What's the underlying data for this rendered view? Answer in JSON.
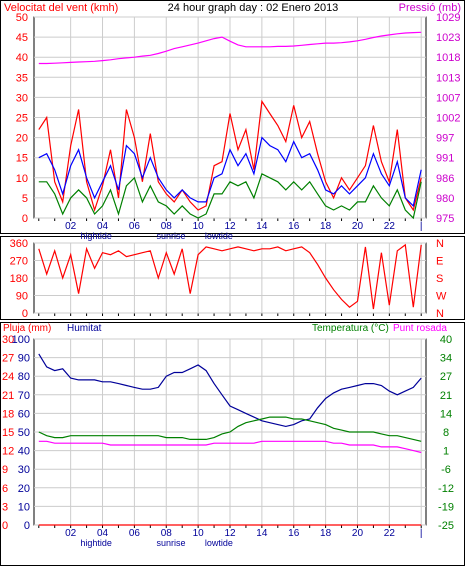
{
  "header": {
    "left_label": "Velocitat del vent (kmh)",
    "center_title": "24 hour graph day : 02 Enero 2013",
    "right_label": "Pressió (mb)"
  },
  "colors": {
    "wind": "#ff0000",
    "gust": "#ff0000",
    "avg_wind": "#0000ff",
    "min_wind": "#008000",
    "pressure": "#ff00ff",
    "direction": "#ff0000",
    "rain": "#ff0000",
    "humidity": "#000099",
    "temperature": "#008000",
    "dewpoint": "#ff00ff",
    "grid": "#cccccc",
    "axis_left": "#ff0000",
    "axis_right": "#cc00cc"
  },
  "x_axis": {
    "hour_labels": [
      "02",
      "04",
      "06",
      "08",
      "10",
      "12",
      "14",
      "16",
      "18",
      "20",
      "22",
      "|"
    ],
    "hour_values": [
      2,
      4,
      6,
      8,
      10,
      12,
      14,
      16,
      18,
      20,
      22,
      24
    ],
    "event_labels": [
      {
        "text": "hightide",
        "hour": 3.6
      },
      {
        "text": "sunrise",
        "hour": 8.3
      },
      {
        "text": "lowtide",
        "hour": 11.3
      }
    ],
    "range": [
      -0.3,
      24.3
    ]
  },
  "panel_top": {
    "y_left_ticks": [
      "0",
      "5",
      "10",
      "15",
      "20",
      "25",
      "30",
      "35",
      "40",
      "45",
      "50"
    ],
    "y_right_ticks": [
      "975",
      "980",
      "986",
      "991",
      "997",
      "1002",
      "1007",
      "1013",
      "1018",
      "1023",
      "1029"
    ]
  },
  "panel_dir": {
    "y_left_ticks": [
      "0",
      "90",
      "180",
      "270",
      "360"
    ],
    "compass": [
      "N",
      "W",
      "S",
      "E",
      "N"
    ]
  },
  "panel_bottom": {
    "left_label": "Pluja (mm)",
    "mid_label": "Humitat",
    "right_label": "Temperatura (°C)",
    "right_label_2": "Punt rosada",
    "y_hum_ticks": [
      "0",
      "10",
      "20",
      "30",
      "40",
      "50",
      "60",
      "70",
      "80",
      "90",
      "100"
    ],
    "y_rain_ticks": [
      "0",
      "3",
      "6",
      "9",
      "12",
      "15",
      "18",
      "21",
      "24",
      "27",
      "30"
    ],
    "y_temp_ticks": [
      "-25",
      "-19",
      "-12",
      "-6",
      "1",
      "8",
      "14",
      "21",
      "27",
      "34",
      "40"
    ]
  },
  "chart_data": [
    {
      "type": "line",
      "title": "24 hour graph day : 02 Enero 2013",
      "xlabel": "",
      "ylabel": "Velocitat del vent (kmh)",
      "ylim": [
        0,
        50
      ],
      "y2label": "Pressió (mb)",
      "y2lim": [
        975,
        1029
      ],
      "x": [
        0.0,
        0.5,
        1.0,
        1.5,
        2.0,
        2.5,
        3.0,
        3.5,
        4.0,
        4.5,
        5.0,
        5.5,
        6.0,
        6.5,
        7.0,
        7.5,
        8.0,
        8.5,
        9.0,
        9.5,
        10.0,
        10.5,
        11.0,
        11.5,
        12.0,
        12.5,
        13.0,
        13.5,
        14.0,
        14.5,
        15.0,
        15.5,
        16.0,
        16.5,
        17.0,
        17.5,
        18.0,
        18.5,
        19.0,
        19.5,
        20.0,
        20.5,
        21.0,
        21.5,
        22.0,
        22.5,
        23.0,
        23.5,
        24.0
      ],
      "series": [
        {
          "name": "",
          "axis": "left",
          "color": "wind",
          "values": [
            22,
            25,
            9,
            4,
            18,
            27,
            9,
            2,
            8,
            17,
            5,
            27,
            20,
            9,
            21,
            9,
            6,
            4,
            7,
            4,
            2,
            3,
            13,
            14,
            26,
            17,
            22,
            12,
            29,
            26,
            23,
            19,
            28,
            20,
            24,
            16,
            9,
            5,
            10,
            7,
            10,
            13,
            23,
            14,
            9,
            22,
            5,
            2,
            10
          ]
        },
        {
          "name": "",
          "axis": "left",
          "color": "avg_wind",
          "values": [
            15,
            16,
            12,
            6,
            13,
            17,
            10,
            5,
            9,
            13,
            7,
            18,
            16,
            10,
            15,
            10,
            7,
            5,
            7,
            5,
            4,
            4,
            10,
            11,
            17,
            13,
            16,
            11,
            20,
            18,
            17,
            14,
            19,
            15,
            16,
            12,
            7,
            6,
            8,
            6,
            8,
            10,
            16,
            11,
            8,
            14,
            5,
            3,
            12
          ]
        },
        {
          "name": "",
          "axis": "left",
          "color": "min_wind",
          "values": [
            9,
            9,
            6,
            1,
            5,
            7,
            5,
            1,
            3,
            7,
            1,
            8,
            10,
            4,
            8,
            4,
            3,
            1,
            3,
            1,
            0,
            1,
            6,
            6,
            9,
            8,
            9,
            5,
            11,
            10,
            9,
            7,
            9,
            7,
            9,
            6,
            3,
            2,
            3,
            2,
            4,
            4,
            8,
            5,
            3,
            7,
            2,
            0,
            9
          ]
        },
        {
          "name": "",
          "axis": "right",
          "color": "pressure",
          "values": [
            1016.5,
            1016.5,
            1016.6,
            1016.7,
            1016.8,
            1016.9,
            1017.0,
            1017.1,
            1017.3,
            1017.5,
            1017.8,
            1018.0,
            1018.2,
            1018.5,
            1018.7,
            1019.2,
            1019.8,
            1020.5,
            1021.0,
            1021.5,
            1022.0,
            1022.6,
            1023.2,
            1023.6,
            1022.5,
            1021.5,
            1021.0,
            1021.0,
            1021.0,
            1021.0,
            1021.1,
            1021.1,
            1021.2,
            1021.4,
            1021.6,
            1021.8,
            1022.0,
            1022.0,
            1022.1,
            1022.3,
            1022.6,
            1023.0,
            1023.5,
            1023.9,
            1024.2,
            1024.5,
            1024.7,
            1024.8,
            1024.9
          ]
        }
      ]
    },
    {
      "type": "line",
      "ylabel": "",
      "ylim": [
        0,
        360
      ],
      "x": [
        0.0,
        0.5,
        1.0,
        1.5,
        2.0,
        2.5,
        3.0,
        3.5,
        4.0,
        4.5,
        5.0,
        5.5,
        6.0,
        6.5,
        7.0,
        7.5,
        8.0,
        8.5,
        9.0,
        9.5,
        10.0,
        10.5,
        11.0,
        11.5,
        12.0,
        12.5,
        13.0,
        13.5,
        14.0,
        14.5,
        15.0,
        15.5,
        16.0,
        16.5,
        17.0,
        17.5,
        18.0,
        18.5,
        19.0,
        19.5,
        20.0,
        20.5,
        21.0,
        21.5,
        22.0,
        22.5,
        23.0,
        23.5,
        24.0
      ],
      "series": [
        {
          "name": "",
          "color": "direction",
          "values": [
            330,
            200,
            320,
            180,
            300,
            100,
            330,
            230,
            310,
            300,
            320,
            290,
            300,
            310,
            320,
            180,
            310,
            200,
            330,
            100,
            300,
            340,
            330,
            320,
            330,
            340,
            330,
            320,
            330,
            330,
            340,
            320,
            330,
            340,
            310,
            250,
            180,
            120,
            70,
            30,
            60,
            340,
            20,
            310,
            40,
            320,
            350,
            30,
            350
          ]
        }
      ]
    },
    {
      "type": "line",
      "ylabel": "Humitat",
      "ylim": [
        0,
        100
      ],
      "x": [
        0.0,
        0.5,
        1.0,
        1.5,
        2.0,
        2.5,
        3.0,
        3.5,
        4.0,
        4.5,
        5.0,
        5.5,
        6.0,
        6.5,
        7.0,
        7.5,
        8.0,
        8.5,
        9.0,
        9.5,
        10.0,
        10.5,
        11.0,
        11.5,
        12.0,
        12.5,
        13.0,
        13.5,
        14.0,
        14.5,
        15.0,
        15.5,
        16.0,
        16.5,
        17.0,
        17.5,
        18.0,
        18.5,
        19.0,
        19.5,
        20.0,
        20.5,
        21.0,
        21.5,
        22.0,
        22.5,
        23.0,
        23.5,
        24.0
      ],
      "series": [
        {
          "name": "",
          "color": "humidity",
          "values": [
            92,
            85,
            83,
            84,
            79,
            78,
            78,
            78,
            77,
            77,
            76,
            75,
            74,
            73,
            73,
            74,
            80,
            82,
            82,
            84,
            86,
            83,
            76,
            70,
            64,
            62,
            60,
            58,
            56,
            55,
            54,
            53,
            54,
            56,
            57,
            63,
            68,
            71,
            73,
            74,
            75,
            76,
            76,
            75,
            72,
            70,
            72,
            74,
            79
          ]
        },
        {
          "name": "",
          "color": "temperature",
          "values": [
            50,
            48,
            47,
            47,
            48,
            48,
            48,
            48,
            48,
            48,
            48,
            48,
            48,
            48,
            48,
            48,
            47,
            47,
            47,
            46,
            46,
            46,
            47,
            49,
            50,
            53,
            55,
            56,
            57,
            58,
            58,
            58,
            57,
            57,
            56,
            55,
            54,
            52,
            51,
            50,
            50,
            50,
            50,
            49,
            48,
            48,
            47,
            46,
            45
          ]
        },
        {
          "name": "",
          "color": "dewpoint",
          "values": [
            45,
            45,
            44,
            44,
            44,
            44,
            44,
            44,
            44,
            43,
            43,
            43,
            43,
            43,
            43,
            43,
            43,
            43,
            43,
            43,
            43,
            43,
            44,
            44,
            44,
            44,
            44,
            44,
            45,
            45,
            45,
            45,
            45,
            45,
            45,
            45,
            45,
            44,
            44,
            43,
            43,
            43,
            43,
            42,
            42,
            42,
            41,
            40,
            39
          ]
        },
        {
          "name": "",
          "color": "rain",
          "values": [
            0,
            0,
            0,
            0,
            0,
            0,
            0,
            0,
            0,
            0,
            0,
            0,
            0,
            0,
            0,
            0,
            0,
            0,
            0,
            0,
            0,
            0,
            0,
            0,
            0,
            0,
            0,
            0,
            0,
            0,
            0,
            0,
            0,
            0,
            0,
            0,
            0,
            0,
            0,
            0,
            0,
            0,
            0,
            0,
            0,
            0,
            0,
            0,
            0
          ]
        }
      ]
    }
  ]
}
